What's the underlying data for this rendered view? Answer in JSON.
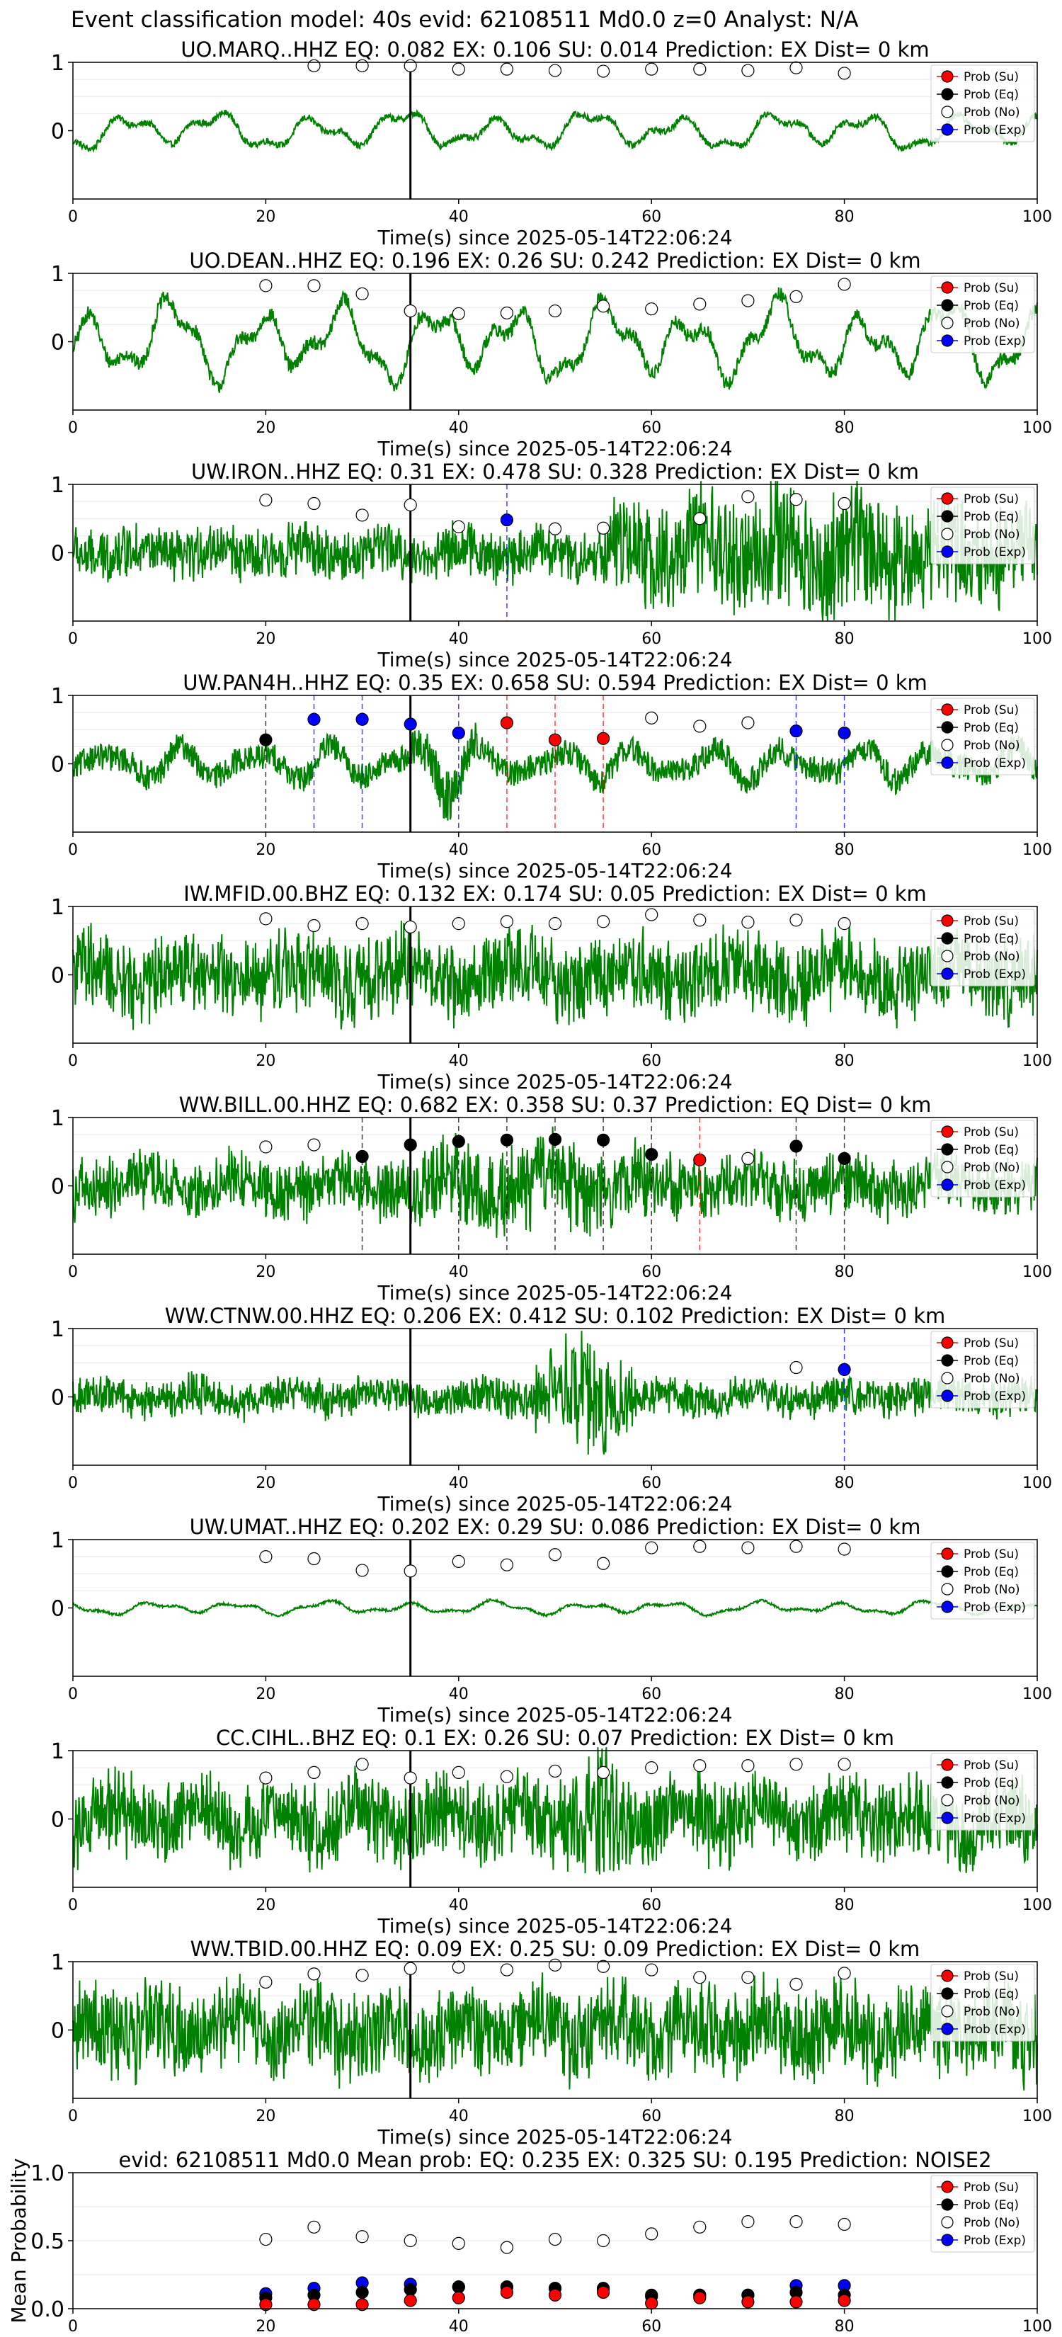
{
  "figure": {
    "suptitle": "Event classification model: 40s evid: 62108511 Md0.0 z=0 Analyst: N/A",
    "xlabel": "Time(s) since 2025-05-14T22:06:24",
    "legend": [
      "Prob (Su)",
      "Prob (Eq)",
      "Prob (No)",
      "Prob (Exp)"
    ],
    "colors": {
      "waveform": "#008000",
      "su": "#ff0000",
      "eq": "#000000",
      "no": "#ffffff",
      "exp": "#0000ff",
      "pick_line": "#000000"
    }
  },
  "chart_data": [
    {
      "type": "line",
      "title": "UO.MARQ..HHZ   EQ: 0.082  EX: 0.106  SU: 0.014   Prediction: EX    Dist= 0 km",
      "xlim": [
        0,
        100
      ],
      "xticks": [
        0,
        20,
        40,
        60,
        80,
        100
      ],
      "yticks": [
        0,
        1
      ],
      "ylim": [
        -1,
        1
      ],
      "pick_time": 35,
      "waveform": {
        "amp": 0.28,
        "style": "smooth",
        "burst": null
      },
      "points": [
        {
          "x": 25,
          "class": "no",
          "p": 0.95
        },
        {
          "x": 30,
          "class": "no",
          "p": 0.95
        },
        {
          "x": 35,
          "class": "no",
          "p": 0.95
        },
        {
          "x": 40,
          "class": "no",
          "p": 0.9
        },
        {
          "x": 45,
          "class": "no",
          "p": 0.9
        },
        {
          "x": 50,
          "class": "no",
          "p": 0.88
        },
        {
          "x": 55,
          "class": "no",
          "p": 0.87
        },
        {
          "x": 60,
          "class": "no",
          "p": 0.9
        },
        {
          "x": 65,
          "class": "no",
          "p": 0.9
        },
        {
          "x": 70,
          "class": "no",
          "p": 0.88
        },
        {
          "x": 75,
          "class": "no",
          "p": 0.92
        },
        {
          "x": 80,
          "class": "no",
          "p": 0.84
        }
      ]
    },
    {
      "type": "line",
      "title": "UO.DEAN..HHZ   EQ: 0.196  EX: 0.26  SU: 0.242   Prediction: EX    Dist= 0 km",
      "xlim": [
        0,
        100
      ],
      "xticks": [
        0,
        20,
        40,
        60,
        80,
        100
      ],
      "yticks": [
        0,
        1
      ],
      "ylim": [
        -1,
        1
      ],
      "pick_time": 35,
      "waveform": {
        "amp": 0.6,
        "style": "smooth",
        "burst": null
      },
      "points": [
        {
          "x": 20,
          "class": "no",
          "p": 0.82
        },
        {
          "x": 25,
          "class": "no",
          "p": 0.82
        },
        {
          "x": 30,
          "class": "no",
          "p": 0.7
        },
        {
          "x": 35,
          "class": "no",
          "p": 0.45
        },
        {
          "x": 40,
          "class": "no",
          "p": 0.41
        },
        {
          "x": 45,
          "class": "no",
          "p": 0.42
        },
        {
          "x": 50,
          "class": "no",
          "p": 0.45
        },
        {
          "x": 55,
          "class": "no",
          "p": 0.52
        },
        {
          "x": 60,
          "class": "no",
          "p": 0.48
        },
        {
          "x": 65,
          "class": "no",
          "p": 0.55
        },
        {
          "x": 70,
          "class": "no",
          "p": 0.6
        },
        {
          "x": 75,
          "class": "no",
          "p": 0.66
        },
        {
          "x": 80,
          "class": "no",
          "p": 0.84
        }
      ]
    },
    {
      "type": "line",
      "title": "UW.IRON..HHZ   EQ: 0.31  EX: 0.478  SU: 0.328   Prediction: EX    Dist= 0 km",
      "xlim": [
        0,
        100
      ],
      "xticks": [
        0,
        20,
        40,
        60,
        80,
        100
      ],
      "yticks": [
        0,
        1
      ],
      "ylim": [
        -1,
        1
      ],
      "pick_time": 35,
      "waveform": {
        "amp": 0.35,
        "style": "noisy",
        "burst": [
          55,
          100,
          2.6
        ]
      },
      "points": [
        {
          "x": 20,
          "class": "no",
          "p": 0.77
        },
        {
          "x": 25,
          "class": "no",
          "p": 0.72
        },
        {
          "x": 30,
          "class": "no",
          "p": 0.55
        },
        {
          "x": 35,
          "class": "no",
          "p": 0.7
        },
        {
          "x": 40,
          "class": "no",
          "p": 0.38
        },
        {
          "x": 45,
          "class": "exp",
          "p": 0.48
        },
        {
          "x": 50,
          "class": "no",
          "p": 0.35
        },
        {
          "x": 55,
          "class": "no",
          "p": 0.36
        },
        {
          "x": 65,
          "class": "no",
          "p": 0.5
        },
        {
          "x": 70,
          "class": "no",
          "p": 0.82
        },
        {
          "x": 75,
          "class": "no",
          "p": 0.78
        },
        {
          "x": 80,
          "class": "no",
          "p": 0.72
        }
      ]
    },
    {
      "type": "line",
      "title": "UW.PAN4H..HHZ   EQ: 0.35  EX: 0.658  SU: 0.594   Prediction: EX    Dist= 0 km",
      "xlim": [
        0,
        100
      ],
      "xticks": [
        0,
        20,
        40,
        60,
        80,
        100
      ],
      "yticks": [
        0,
        1
      ],
      "ylim": [
        -1,
        1
      ],
      "pick_time": 35,
      "waveform": {
        "amp": 0.35,
        "style": "mixed",
        "burst": [
          35,
          42,
          2.0
        ]
      },
      "points": [
        {
          "x": 20,
          "class": "eq",
          "p": 0.35
        },
        {
          "x": 25,
          "class": "exp",
          "p": 0.65
        },
        {
          "x": 30,
          "class": "exp",
          "p": 0.65
        },
        {
          "x": 35,
          "class": "exp",
          "p": 0.58
        },
        {
          "x": 40,
          "class": "exp",
          "p": 0.45
        },
        {
          "x": 45,
          "class": "su",
          "p": 0.6
        },
        {
          "x": 50,
          "class": "su",
          "p": 0.35
        },
        {
          "x": 55,
          "class": "su",
          "p": 0.37
        },
        {
          "x": 60,
          "class": "no",
          "p": 0.67
        },
        {
          "x": 65,
          "class": "no",
          "p": 0.55
        },
        {
          "x": 70,
          "class": "no",
          "p": 0.6
        },
        {
          "x": 75,
          "class": "exp",
          "p": 0.48
        },
        {
          "x": 80,
          "class": "exp",
          "p": 0.45
        }
      ]
    },
    {
      "type": "line",
      "title": "IW.MFID.00.BHZ   EQ: 0.132  EX: 0.174  SU: 0.05   Prediction: EX    Dist= 0 km",
      "xlim": [
        0,
        100
      ],
      "xticks": [
        0,
        20,
        40,
        60,
        80,
        100
      ],
      "yticks": [
        0,
        1
      ],
      "ylim": [
        -1,
        1
      ],
      "pick_time": 35,
      "waveform": {
        "amp": 0.55,
        "style": "noisy",
        "burst": null
      },
      "points": [
        {
          "x": 20,
          "class": "no",
          "p": 0.82
        },
        {
          "x": 25,
          "class": "no",
          "p": 0.72
        },
        {
          "x": 30,
          "class": "no",
          "p": 0.75
        },
        {
          "x": 35,
          "class": "no",
          "p": 0.7
        },
        {
          "x": 40,
          "class": "no",
          "p": 0.75
        },
        {
          "x": 45,
          "class": "no",
          "p": 0.78
        },
        {
          "x": 50,
          "class": "no",
          "p": 0.75
        },
        {
          "x": 55,
          "class": "no",
          "p": 0.78
        },
        {
          "x": 60,
          "class": "no",
          "p": 0.88
        },
        {
          "x": 65,
          "class": "no",
          "p": 0.8
        },
        {
          "x": 70,
          "class": "no",
          "p": 0.77
        },
        {
          "x": 75,
          "class": "no",
          "p": 0.8
        },
        {
          "x": 80,
          "class": "no",
          "p": 0.75
        }
      ]
    },
    {
      "type": "line",
      "title": "WW.BILL.00.HHZ   EQ: 0.682  EX: 0.358  SU: 0.37   Prediction: EQ    Dist= 0 km",
      "xlim": [
        0,
        100
      ],
      "xticks": [
        0,
        20,
        40,
        60,
        80,
        100
      ],
      "yticks": [
        0,
        1
      ],
      "ylim": [
        -1,
        1
      ],
      "pick_time": 35,
      "waveform": {
        "amp": 0.4,
        "style": "noisy",
        "burst": [
          35,
          60,
          1.6
        ]
      },
      "points": [
        {
          "x": 20,
          "class": "no",
          "p": 0.57
        },
        {
          "x": 25,
          "class": "no",
          "p": 0.6
        },
        {
          "x": 30,
          "class": "eq",
          "p": 0.43
        },
        {
          "x": 35,
          "class": "eq",
          "p": 0.6
        },
        {
          "x": 40,
          "class": "eq",
          "p": 0.65
        },
        {
          "x": 45,
          "class": "eq",
          "p": 0.67
        },
        {
          "x": 50,
          "class": "eq",
          "p": 0.68
        },
        {
          "x": 55,
          "class": "eq",
          "p": 0.67
        },
        {
          "x": 60,
          "class": "eq",
          "p": 0.46
        },
        {
          "x": 65,
          "class": "su",
          "p": 0.38
        },
        {
          "x": 70,
          "class": "no",
          "p": 0.4
        },
        {
          "x": 75,
          "class": "eq",
          "p": 0.58
        },
        {
          "x": 80,
          "class": "eq",
          "p": 0.4
        }
      ]
    },
    {
      "type": "line",
      "title": "WW.CTNW.00.HHZ   EQ: 0.206  EX: 0.412  SU: 0.102   Prediction: EX    Dist= 0 km",
      "xlim": [
        0,
        100
      ],
      "xticks": [
        0,
        20,
        40,
        60,
        80,
        100
      ],
      "yticks": [
        0,
        1
      ],
      "ylim": [
        -1,
        1
      ],
      "pick_time": 35,
      "waveform": {
        "amp": 0.25,
        "style": "noisy",
        "burst": [
          48,
          58,
          3.2
        ]
      },
      "points": [
        {
          "x": 75,
          "class": "no",
          "p": 0.43
        },
        {
          "x": 80,
          "class": "exp",
          "p": 0.4
        }
      ]
    },
    {
      "type": "line",
      "title": "UW.UMAT..HHZ   EQ: 0.202  EX: 0.29  SU: 0.086   Prediction: EX    Dist= 0 km",
      "xlim": [
        0,
        100
      ],
      "xticks": [
        0,
        20,
        40,
        60,
        80,
        100
      ],
      "yticks": [
        0,
        1
      ],
      "ylim": [
        -1,
        1
      ],
      "pick_time": 35,
      "waveform": {
        "amp": 0.1,
        "style": "smooth",
        "burst": null
      },
      "points": [
        {
          "x": 20,
          "class": "no",
          "p": 0.75
        },
        {
          "x": 25,
          "class": "no",
          "p": 0.72
        },
        {
          "x": 30,
          "class": "no",
          "p": 0.55
        },
        {
          "x": 35,
          "class": "no",
          "p": 0.54
        },
        {
          "x": 40,
          "class": "no",
          "p": 0.68
        },
        {
          "x": 45,
          "class": "no",
          "p": 0.63
        },
        {
          "x": 50,
          "class": "no",
          "p": 0.78
        },
        {
          "x": 55,
          "class": "no",
          "p": 0.65
        },
        {
          "x": 60,
          "class": "no",
          "p": 0.88
        },
        {
          "x": 65,
          "class": "no",
          "p": 0.9
        },
        {
          "x": 70,
          "class": "no",
          "p": 0.88
        },
        {
          "x": 75,
          "class": "no",
          "p": 0.9
        },
        {
          "x": 80,
          "class": "no",
          "p": 0.86
        }
      ]
    },
    {
      "type": "line",
      "title": "CC.CIHL..BHZ   EQ: 0.1  EX: 0.26  SU: 0.07   Prediction: EX    Dist= 0 km",
      "xlim": [
        0,
        100
      ],
      "xticks": [
        0,
        20,
        40,
        60,
        80,
        100
      ],
      "yticks": [
        0,
        1
      ],
      "ylim": [
        -1,
        1
      ],
      "pick_time": 35,
      "waveform": {
        "amp": 0.55,
        "style": "noisy",
        "burst": [
          50,
          58,
          1.6
        ]
      },
      "points": [
        {
          "x": 20,
          "class": "no",
          "p": 0.6
        },
        {
          "x": 25,
          "class": "no",
          "p": 0.68
        },
        {
          "x": 30,
          "class": "no",
          "p": 0.8
        },
        {
          "x": 35,
          "class": "no",
          "p": 0.6
        },
        {
          "x": 40,
          "class": "no",
          "p": 0.68
        },
        {
          "x": 45,
          "class": "no",
          "p": 0.62
        },
        {
          "x": 50,
          "class": "no",
          "p": 0.7
        },
        {
          "x": 55,
          "class": "no",
          "p": 0.68
        },
        {
          "x": 60,
          "class": "no",
          "p": 0.75
        },
        {
          "x": 65,
          "class": "no",
          "p": 0.78
        },
        {
          "x": 70,
          "class": "no",
          "p": 0.78
        },
        {
          "x": 75,
          "class": "no",
          "p": 0.8
        },
        {
          "x": 80,
          "class": "no",
          "p": 0.8
        }
      ]
    },
    {
      "type": "line",
      "title": "WW.TBID.00.HHZ   EQ: 0.09  EX: 0.25  SU: 0.09   Prediction: EX    Dist= 0 km",
      "xlim": [
        0,
        100
      ],
      "xticks": [
        0,
        20,
        40,
        60,
        80,
        100
      ],
      "yticks": [
        0,
        1
      ],
      "ylim": [
        -1,
        1
      ],
      "pick_time": 35,
      "waveform": {
        "amp": 0.6,
        "style": "noisy",
        "burst": null
      },
      "points": [
        {
          "x": 20,
          "class": "no",
          "p": 0.7
        },
        {
          "x": 25,
          "class": "no",
          "p": 0.82
        },
        {
          "x": 30,
          "class": "no",
          "p": 0.8
        },
        {
          "x": 35,
          "class": "no",
          "p": 0.9
        },
        {
          "x": 40,
          "class": "no",
          "p": 0.92
        },
        {
          "x": 45,
          "class": "no",
          "p": 0.88
        },
        {
          "x": 50,
          "class": "no",
          "p": 0.95
        },
        {
          "x": 55,
          "class": "no",
          "p": 0.93
        },
        {
          "x": 60,
          "class": "no",
          "p": 0.88
        },
        {
          "x": 65,
          "class": "no",
          "p": 0.77
        },
        {
          "x": 70,
          "class": "no",
          "p": 0.77
        },
        {
          "x": 75,
          "class": "no",
          "p": 0.67
        },
        {
          "x": 80,
          "class": "no",
          "p": 0.83
        }
      ]
    },
    {
      "type": "scatter",
      "title": "evid: 62108511  Md0.0   Mean prob:   EQ: 0.235  EX: 0.325  SU: 0.195   Prediction: NOISE2",
      "ylabel": "Mean Probability",
      "xlim": [
        0,
        100
      ],
      "xticks": [
        0,
        20,
        40,
        60,
        80,
        100
      ],
      "ylim": [
        0,
        1
      ],
      "yticks": [
        0.0,
        0.5,
        1.0
      ],
      "series": [
        {
          "class": "no",
          "x": [
            20,
            25,
            30,
            35,
            40,
            45,
            50,
            55,
            60,
            65,
            70,
            75,
            80
          ],
          "y": [
            0.51,
            0.6,
            0.53,
            0.5,
            0.48,
            0.45,
            0.51,
            0.5,
            0.55,
            0.6,
            0.64,
            0.64,
            0.62
          ]
        },
        {
          "class": "exp",
          "x": [
            20,
            25,
            30,
            35,
            40,
            45,
            50,
            55,
            60,
            65,
            70,
            75,
            80
          ],
          "y": [
            0.11,
            0.15,
            0.19,
            0.18,
            0.16,
            0.16,
            0.15,
            0.14,
            0.09,
            0.1,
            0.1,
            0.17,
            0.17
          ]
        },
        {
          "class": "eq",
          "x": [
            20,
            25,
            30,
            35,
            40,
            45,
            50,
            55,
            60,
            65,
            70,
            75,
            80
          ],
          "y": [
            0.08,
            0.1,
            0.12,
            0.14,
            0.16,
            0.16,
            0.15,
            0.15,
            0.1,
            0.1,
            0.1,
            0.12,
            0.1
          ]
        },
        {
          "class": "su",
          "x": [
            20,
            25,
            30,
            35,
            40,
            45,
            50,
            55,
            60,
            65,
            70,
            75,
            80
          ],
          "y": [
            0.03,
            0.03,
            0.03,
            0.06,
            0.08,
            0.12,
            0.1,
            0.12,
            0.04,
            0.08,
            0.05,
            0.05,
            0.06
          ]
        }
      ]
    }
  ]
}
